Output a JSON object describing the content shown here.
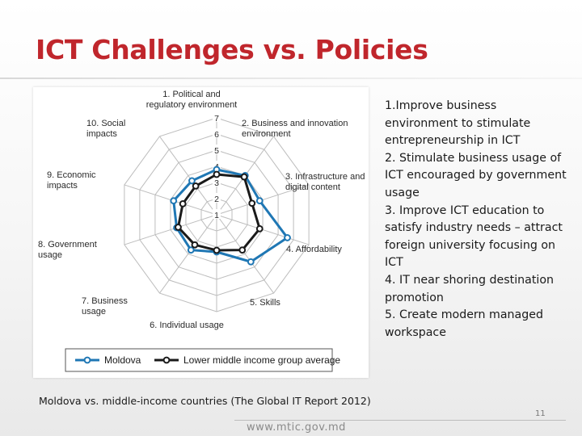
{
  "slide": {
    "title": "ICT Challenges vs. Policies",
    "caption": "Moldova vs. middle-income countries (The Global IT Report 2012)",
    "page_number": "11",
    "footer_url": "www.mtic.gov.md"
  },
  "policies": [
    "1.Improve business environment to stimulate entrepreneurship in ICT",
    "2. Stimulate business usage of ICT encouraged by government usage",
    "3. Improve ICT education to satisfy industry needs – attract foreign university focusing on ICT",
    "4. IT near shoring destination promotion",
    "5. Create modern managed workspace"
  ],
  "chart_data": {
    "type": "radar",
    "axes": [
      [
        "1. Political and",
        "regulatory environment"
      ],
      [
        "2. Business and innovation",
        "environment"
      ],
      [
        "3. Infrastructure and",
        "digital content"
      ],
      [
        "4. Affordability"
      ],
      [
        "5. Skills"
      ],
      [
        "6. Individual usage"
      ],
      [
        "7. Business",
        "usage"
      ],
      [
        "8. Government",
        "usage"
      ],
      [
        "9. Economic",
        "impacts"
      ],
      [
        "10. Social",
        "impacts"
      ]
    ],
    "rlim": [
      1,
      7
    ],
    "ticks": [
      "1",
      "2",
      "3",
      "4",
      "5",
      "6",
      "7"
    ],
    "grid": true,
    "legend_position": "bottom",
    "series": [
      {
        "name": "Moldova",
        "color": "#1f77b4",
        "values": [
          3.8,
          4.0,
          3.8,
          5.6,
          4.6,
          3.3,
          3.7,
          3.6,
          3.8,
          3.6
        ]
      },
      {
        "name": "Lower middle income group average",
        "color": "#1a1a1a",
        "values": [
          3.5,
          3.9,
          3.3,
          3.8,
          3.7,
          3.2,
          3.3,
          3.5,
          3.2,
          3.2
        ]
      }
    ]
  }
}
